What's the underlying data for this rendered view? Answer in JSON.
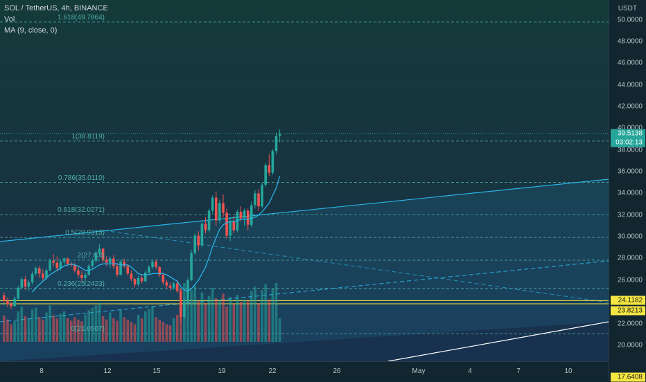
{
  "legend": {
    "symbol": "SOL / TetherUS, 4h, BINANCE",
    "vol_label": "Vol",
    "ma_label": "MA (9, close, 0)"
  },
  "price_axis": {
    "currency": "USDT",
    "ticks": [
      "50.0000",
      "48.0000",
      "46.0000",
      "44.0000",
      "42.0000",
      "40.0000",
      "38.0000",
      "36.0000",
      "34.0000",
      "32.0000",
      "30.0000",
      "28.0000",
      "26.0000",
      "22.0000",
      "20.0000"
    ],
    "tick_values": [
      50,
      48,
      46,
      44,
      42,
      40,
      38,
      36,
      34,
      32,
      30,
      28,
      26,
      22,
      20
    ],
    "partial_bottom_label": "17.6408"
  },
  "price_badges": {
    "current_price": "39.5138",
    "timer": "03:02:13",
    "level_1": "24.1182",
    "level_2": "23.8213"
  },
  "time_axis": {
    "labels": [
      "8",
      "12",
      "15",
      "19",
      "22",
      "26",
      "May",
      "4",
      "7",
      "10"
    ]
  },
  "fib_levels": [
    {
      "label": "1.618(49.7864)",
      "value": 49.7864
    },
    {
      "label": "1(38.8119)",
      "value": 38.8119
    },
    {
      "label": "0.786(35.0110)",
      "value": 35.011
    },
    {
      "label": "0.618(32.0271)",
      "value": 32.0271
    },
    {
      "label": "0.5(29.9313)",
      "value": 29.9313
    },
    {
      "label": "2(27.835",
      "value": 27.835
    },
    {
      "label": "0.236(25.2423)",
      "value": 25.2423
    },
    {
      "label": "0(21.0507)",
      "value": 21.0507
    }
  ],
  "colors": {
    "up": "#26a69a",
    "down": "#ef5350",
    "fib_line": "#4fb0a8",
    "channel_line": "#2bb3e6",
    "ma_line": "#2bb3e6",
    "yellow_line": "#f5e642",
    "current_price_line": "#26a69a"
  },
  "chart_data": {
    "type": "candlestick",
    "ohlc": [
      [
        24.6,
        24.9,
        23.9,
        24.1
      ],
      [
        24.1,
        24.4,
        23.5,
        23.8
      ],
      [
        23.8,
        24.0,
        23.3,
        23.6
      ],
      [
        23.6,
        24.5,
        23.5,
        24.3
      ],
      [
        24.3,
        25.5,
        24.1,
        25.3
      ],
      [
        25.3,
        26.3,
        25.1,
        26.1
      ],
      [
        26.1,
        26.4,
        25.1,
        25.4
      ],
      [
        25.4,
        26.0,
        25.0,
        25.8
      ],
      [
        25.8,
        26.8,
        25.6,
        26.6
      ],
      [
        26.6,
        27.3,
        26.4,
        27.1
      ],
      [
        27.1,
        27.3,
        26.2,
        26.6
      ],
      [
        26.6,
        27.0,
        25.9,
        26.2
      ],
      [
        26.2,
        27.1,
        26.0,
        26.9
      ],
      [
        26.9,
        28.0,
        26.8,
        27.8
      ],
      [
        27.8,
        28.4,
        27.3,
        27.6
      ],
      [
        27.6,
        28.2,
        26.8,
        27.1
      ],
      [
        27.1,
        27.9,
        26.9,
        27.7
      ],
      [
        27.7,
        28.1,
        27.4,
        28.0
      ],
      [
        28.0,
        28.1,
        27.3,
        27.5
      ],
      [
        27.5,
        27.7,
        27.2,
        27.4
      ],
      [
        27.4,
        27.6,
        26.7,
        26.9
      ],
      [
        26.9,
        27.3,
        26.2,
        26.5
      ],
      [
        26.5,
        26.9,
        25.9,
        26.2
      ],
      [
        26.2,
        26.7,
        25.6,
        26.5
      ],
      [
        26.5,
        27.5,
        26.4,
        27.3
      ],
      [
        27.3,
        28.0,
        27.1,
        27.8
      ],
      [
        27.8,
        28.7,
        27.6,
        28.5
      ],
      [
        28.5,
        29.3,
        28.2,
        28.9
      ],
      [
        28.9,
        29.0,
        27.6,
        27.9
      ],
      [
        27.9,
        28.2,
        27.3,
        27.6
      ],
      [
        27.6,
        28.2,
        27.1,
        28.0
      ],
      [
        28.0,
        28.3,
        27.0,
        27.3
      ],
      [
        27.3,
        27.6,
        26.3,
        26.5
      ],
      [
        26.5,
        27.9,
        26.4,
        27.7
      ],
      [
        27.7,
        28.0,
        27.1,
        27.3
      ],
      [
        27.3,
        27.5,
        26.4,
        26.6
      ],
      [
        26.6,
        26.9,
        25.9,
        26.1
      ],
      [
        26.1,
        26.2,
        25.3,
        25.6
      ],
      [
        25.6,
        26.4,
        25.4,
        26.2
      ],
      [
        26.2,
        26.5,
        25.7,
        25.9
      ],
      [
        25.9,
        26.9,
        25.8,
        26.7
      ],
      [
        26.7,
        27.4,
        26.5,
        27.2
      ],
      [
        27.2,
        27.9,
        27.0,
        27.7
      ],
      [
        27.7,
        27.9,
        27.0,
        27.2
      ],
      [
        27.2,
        27.3,
        26.3,
        26.5
      ],
      [
        26.5,
        26.7,
        25.6,
        25.8
      ],
      [
        25.8,
        26.0,
        25.2,
        25.5
      ],
      [
        25.5,
        25.8,
        25.0,
        25.3
      ],
      [
        25.3,
        25.9,
        25.1,
        25.7
      ],
      [
        25.7,
        26.0,
        24.8,
        25.0
      ],
      [
        25.0,
        25.2,
        22.1,
        22.6
      ],
      [
        22.6,
        24.3,
        22.4,
        24.0
      ],
      [
        24.0,
        26.2,
        23.8,
        26.0
      ],
      [
        26.0,
        28.8,
        25.9,
        28.5
      ],
      [
        28.5,
        30.3,
        28.3,
        30.1
      ],
      [
        30.1,
        30.5,
        28.7,
        29.2
      ],
      [
        29.2,
        31.4,
        29.0,
        31.2
      ],
      [
        31.2,
        31.8,
        30.3,
        30.6
      ],
      [
        30.6,
        32.6,
        30.4,
        32.4
      ],
      [
        32.4,
        33.8,
        32.1,
        33.6
      ],
      [
        33.6,
        34.2,
        31.0,
        31.5
      ],
      [
        31.5,
        33.4,
        31.2,
        33.1
      ],
      [
        33.1,
        33.9,
        31.8,
        32.2
      ],
      [
        32.2,
        32.6,
        29.8,
        30.1
      ],
      [
        30.1,
        31.8,
        29.6,
        31.4
      ],
      [
        31.4,
        31.9,
        30.3,
        30.6
      ],
      [
        30.6,
        32.5,
        30.4,
        32.3
      ],
      [
        32.3,
        32.8,
        31.4,
        31.7
      ],
      [
        31.7,
        32.6,
        31.0,
        32.4
      ],
      [
        32.4,
        32.6,
        30.6,
        31.1
      ],
      [
        31.1,
        33.2,
        30.9,
        32.9
      ],
      [
        32.9,
        34.3,
        32.6,
        34.0
      ],
      [
        34.0,
        34.4,
        32.4,
        32.8
      ],
      [
        32.8,
        35.0,
        32.6,
        34.8
      ],
      [
        34.8,
        36.8,
        34.6,
        36.6
      ],
      [
        36.6,
        37.6,
        35.6,
        35.9
      ],
      [
        35.9,
        38.1,
        35.7,
        37.9
      ],
      [
        37.9,
        39.6,
        37.6,
        39.3
      ],
      [
        39.3,
        39.9,
        38.7,
        39.5138
      ]
    ],
    "volume": [
      45,
      38,
      30,
      35,
      52,
      60,
      44,
      40,
      55,
      58,
      42,
      38,
      50,
      62,
      45,
      40,
      48,
      52,
      40,
      36,
      42,
      38,
      35,
      46,
      54,
      58,
      62,
      66,
      44,
      38,
      50,
      40,
      36,
      54,
      42,
      38,
      34,
      30,
      46,
      40,
      52,
      56,
      60,
      42,
      38,
      34,
      30,
      28,
      40,
      46,
      90,
      100,
      72,
      88,
      96,
      70,
      84,
      66,
      78,
      92,
      74,
      70,
      82,
      60,
      76,
      64,
      80,
      68,
      72,
      70,
      86,
      94,
      66,
      88,
      98,
      72,
      90,
      100,
      40
    ],
    "ma": [
      null,
      null,
      null,
      null,
      null,
      null,
      null,
      null,
      24.9,
      25.3,
      25.6,
      25.9,
      26.2,
      26.5,
      26.7,
      26.9,
      27.1,
      27.3,
      27.4,
      27.5,
      27.4,
      27.3,
      27.1,
      26.9,
      26.9,
      27.0,
      27.2,
      27.4,
      27.5,
      27.5,
      27.5,
      27.5,
      27.5,
      27.4,
      27.4,
      27.4,
      27.2,
      26.9,
      26.6,
      26.5,
      26.5,
      26.5,
      26.6,
      26.6,
      26.6,
      26.6,
      26.5,
      26.3,
      26.1,
      25.9,
      25.4,
      25.1,
      25.0,
      25.2,
      25.6,
      26.0,
      26.6,
      27.2,
      28.1,
      29.1,
      29.9,
      30.7,
      31.1,
      31.3,
      31.4,
      31.4,
      31.5,
      31.6,
      31.6,
      31.6,
      31.7,
      31.8,
      32.0,
      32.3,
      32.7,
      33.1,
      33.8,
      34.5,
      35.6
    ],
    "ylim": [
      17.5,
      51.5
    ]
  }
}
